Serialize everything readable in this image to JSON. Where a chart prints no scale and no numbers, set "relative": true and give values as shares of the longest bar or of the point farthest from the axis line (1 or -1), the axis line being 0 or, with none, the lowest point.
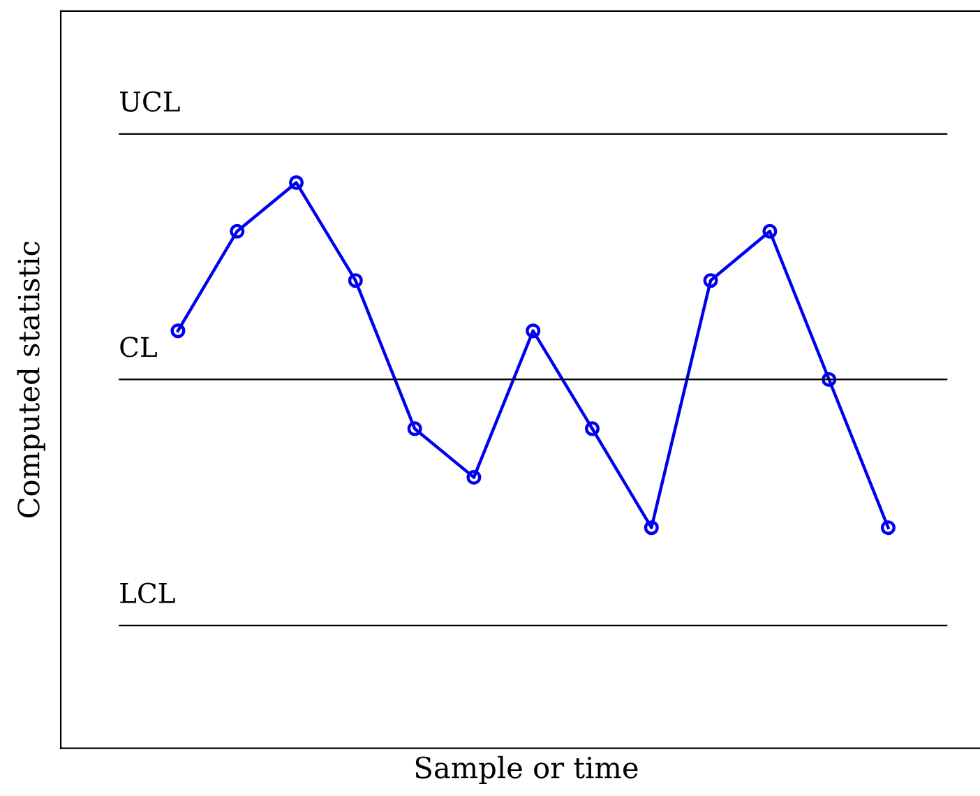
{
  "chart_data": {
    "type": "line",
    "xlabel": "Sample or time",
    "ylabel": "Computed statistic",
    "relative": true,
    "categories": [
      null,
      null,
      null,
      null,
      null,
      null,
      null,
      null,
      null,
      null,
      null,
      null,
      null
    ],
    "series": [
      {
        "color": "#0000ee",
        "values": [
          0.738,
          0.914,
          1,
          0.827,
          0.565,
          0.479,
          0.738,
          0.565,
          0.39,
          0.827,
          0.914,
          0.652,
          0.39
        ]
      }
    ],
    "marker": "circle",
    "line_style": "solid",
    "legend": false,
    "ref_lines": [
      {
        "axis": "y",
        "value": 1.086,
        "label": "UCL",
        "color": "#000000"
      },
      {
        "axis": "y",
        "value": 0.652,
        "label": "CL",
        "color": "#000000"
      },
      {
        "axis": "y",
        "value": 0.217,
        "label": "LCL",
        "color": "#000000"
      }
    ]
  }
}
